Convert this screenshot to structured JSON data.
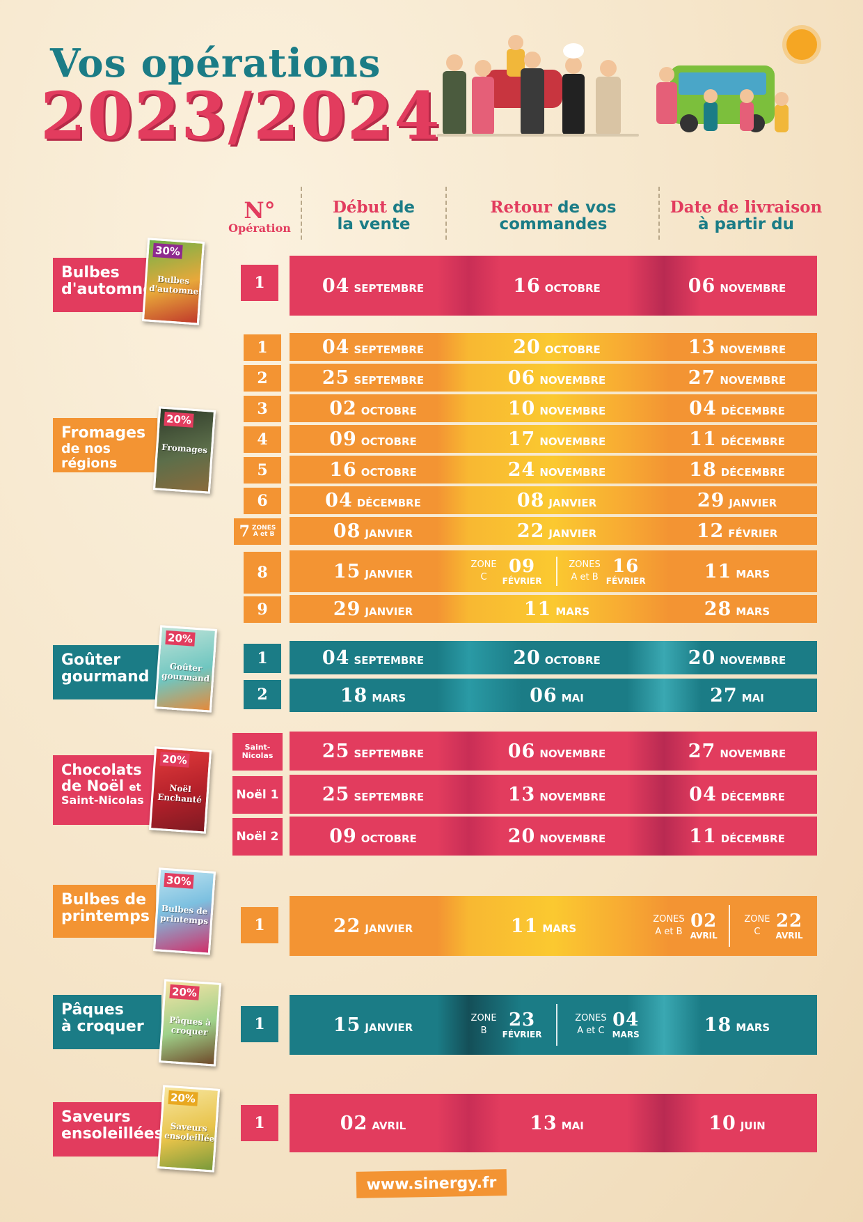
{
  "title": {
    "line1": "Vos opérations",
    "line2": "2023/2024"
  },
  "header": {
    "num_symbol": "N°",
    "num_label": "Opération",
    "col1_pink": "Début",
    "col1_teal_a": "de",
    "col1_teal_b": "la vente",
    "col2_pink": "Retour",
    "col2_teal_a": "de vos",
    "col2_teal_b": "commandes",
    "col3_pink": "Date de livraison",
    "col3_teal": "à partir du"
  },
  "categories": {
    "bulbes_automne": {
      "label_l1": "Bulbes",
      "label_l2": "d'automne",
      "cover_pct": "30%",
      "cover_title": "Bulbes d'automne"
    },
    "fromages": {
      "label_l1": "Fromages",
      "label_l2": "de nos régions",
      "cover_pct": "20%",
      "cover_title": "Fromages"
    },
    "gouter": {
      "label_l1": "Goûter",
      "label_l2": "gourmand",
      "cover_pct": "20%",
      "cover_title": "Goûter gourmand"
    },
    "chocolats": {
      "label_l1": "Chocolats",
      "label_l2a": "de Noël",
      "label_l2b": "et",
      "label_l3": "Saint-Nicolas",
      "cover_pct": "20%",
      "cover_title": "Noël Enchanté"
    },
    "bulbes_printemps": {
      "label_l1": "Bulbes de",
      "label_l2": "printemps",
      "cover_pct": "30%",
      "cover_title": "Bulbes de printemps"
    },
    "paques": {
      "label_l1": "Pâques",
      "label_l2": "à croquer",
      "cover_pct": "20%",
      "cover_title": "Pâques à croquer"
    },
    "saveurs": {
      "label_l1": "Saveurs",
      "label_l2": "ensoleillées",
      "cover_pct": "20%",
      "cover_title": "Saveurs ensoleillées"
    }
  },
  "rows": {
    "ba1": {
      "num": "1",
      "d1": "04",
      "m1": "SEPTEMBRE",
      "d2": "16",
      "m2": "OCTOBRE",
      "d3": "06",
      "m3": "NOVEMBRE"
    },
    "f1": {
      "num": "1",
      "d1": "04",
      "m1": "SEPTEMBRE",
      "d2": "20",
      "m2": "OCTOBRE",
      "d3": "13",
      "m3": "NOVEMBRE"
    },
    "f2": {
      "num": "2",
      "d1": "25",
      "m1": "SEPTEMBRE",
      "d2": "06",
      "m2": "NOVEMBRE",
      "d3": "27",
      "m3": "NOVEMBRE"
    },
    "f3": {
      "num": "3",
      "d1": "02",
      "m1": "OCTOBRE",
      "d2": "10",
      "m2": "NOVEMBRE",
      "d3": "04",
      "m3": "DÉCEMBRE"
    },
    "f4": {
      "num": "4",
      "d1": "09",
      "m1": "OCTOBRE",
      "d2": "17",
      "m2": "NOVEMBRE",
      "d3": "11",
      "m3": "DÉCEMBRE"
    },
    "f5": {
      "num": "5",
      "d1": "16",
      "m1": "OCTOBRE",
      "d2": "24",
      "m2": "NOVEMBRE",
      "d3": "18",
      "m3": "DÉCEMBRE"
    },
    "f6": {
      "num": "6",
      "d1": "04",
      "m1": "DÉCEMBRE",
      "d2": "08",
      "m2": "JANVIER",
      "d3": "29",
      "m3": "JANVIER"
    },
    "f7": {
      "num": "7",
      "num_note_a": "ZONES",
      "num_note_b": "A et B",
      "d1": "08",
      "m1": "JANVIER",
      "d2": "22",
      "m2": "JANVIER",
      "d3": "12",
      "m3": "FÉVRIER"
    },
    "f8": {
      "num": "8",
      "d1": "15",
      "m1": "JANVIER",
      "zA_label_a": "ZONE",
      "zA_label_b": "C",
      "zA_day": "09",
      "zA_mon": "FÉVRIER",
      "zB_label_a": "ZONES",
      "zB_label_b": "A et B",
      "zB_day": "16",
      "zB_mon": "FÉVRIER",
      "d3": "11",
      "m3": "MARS"
    },
    "f9": {
      "num": "9",
      "d1": "29",
      "m1": "JANVIER",
      "d2": "11",
      "m2": "MARS",
      "d3": "28",
      "m3": "MARS"
    },
    "g1": {
      "num": "1",
      "d1": "04",
      "m1": "SEPTEMBRE",
      "d2": "20",
      "m2": "OCTOBRE",
      "d3": "20",
      "m3": "NOVEMBRE"
    },
    "g2": {
      "num": "2",
      "d1": "18",
      "m1": "MARS",
      "d2": "06",
      "m2": "MAI",
      "d3": "27",
      "m3": "MAI"
    },
    "csn": {
      "num_a": "Saint-",
      "num_b": "Nicolas",
      "d1": "25",
      "m1": "SEPTEMBRE",
      "d2": "06",
      "m2": "NOVEMBRE",
      "d3": "27",
      "m3": "NOVEMBRE"
    },
    "cn1": {
      "num": "Noël 1",
      "d1": "25",
      "m1": "SEPTEMBRE",
      "d2": "13",
      "m2": "NOVEMBRE",
      "d3": "04",
      "m3": "DÉCEMBRE"
    },
    "cn2": {
      "num": "Noël 2",
      "d1": "09",
      "m1": "OCTOBRE",
      "d2": "20",
      "m2": "NOVEMBRE",
      "d3": "11",
      "m3": "DÉCEMBRE"
    },
    "bp1": {
      "num": "1",
      "d1": "22",
      "m1": "JANVIER",
      "d2": "11",
      "m2": "MARS",
      "zA_label_a": "ZONES",
      "zA_label_b": "A et B",
      "zA_day": "02",
      "zA_mon": "AVRIL",
      "zB_label_a": "ZONE",
      "zB_label_b": "C",
      "zB_day": "22",
      "zB_mon": "AVRIL"
    },
    "pq1": {
      "num": "1",
      "d1": "15",
      "m1": "JANVIER",
      "zA_label_a": "ZONE",
      "zA_label_b": "B",
      "zA_day": "23",
      "zA_mon": "FÉVRIER",
      "zB_label_a": "ZONES",
      "zB_label_b": "A et C",
      "zB_day": "04",
      "zB_mon": "MARS",
      "d3": "18",
      "m3": "MARS"
    },
    "sv1": {
      "num": "1",
      "d1": "02",
      "m1": "AVRIL",
      "d2": "13",
      "m2": "MAI",
      "d3": "10",
      "m3": "JUIN"
    }
  },
  "footer": {
    "url": "www.sinergy.fr"
  },
  "colors": {
    "pink": "#e23c5e",
    "orange": "#f39433",
    "teal": "#1b7c86",
    "background": "#f5e4c7"
  },
  "icons": [
    "farmers-illustration",
    "bus-illustration",
    "sun-icon"
  ]
}
